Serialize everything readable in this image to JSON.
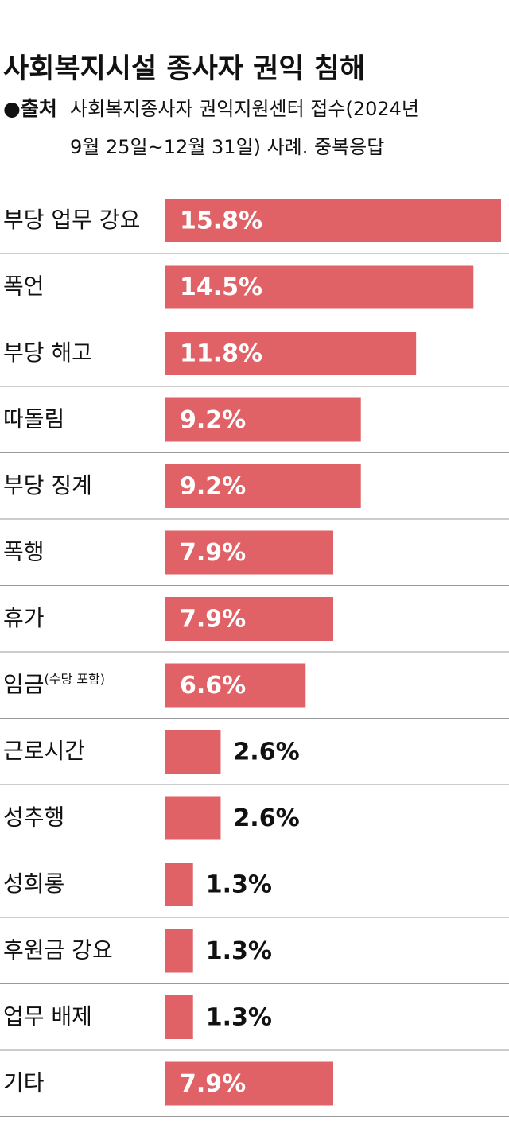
{
  "chart_data": {
    "type": "hbar",
    "title": "사회복지시설 종사자 권익 침해",
    "source_label": "●출처",
    "source_lines": [
      "사회복지종사자 권익지원센터 접수(2024년",
      "9월 25일~12월 31일) 사례. 중복응답"
    ],
    "categories": [
      "부당 업무 강요",
      "폭언",
      "부당 해고",
      "따돌림",
      "부당 징계",
      "폭행",
      "휴가",
      "임금(수당 포함)",
      "근로시간",
      "성추행",
      "성희롱",
      "후원금 강요",
      "업무 배제",
      "기타"
    ],
    "values": [
      15.8,
      14.5,
      11.8,
      9.2,
      9.2,
      7.9,
      7.9,
      6.6,
      2.6,
      2.6,
      1.3,
      1.3,
      1.3,
      7.9
    ],
    "value_labels": [
      "15.8%",
      "14.5%",
      "11.8%",
      "9.2%",
      "9.2%",
      "7.9%",
      "7.9%",
      "6.6%",
      "2.6%",
      "2.6%",
      "1.3%",
      "1.3%",
      "1.3%",
      "7.9%"
    ],
    "color": "#e06166"
  }
}
